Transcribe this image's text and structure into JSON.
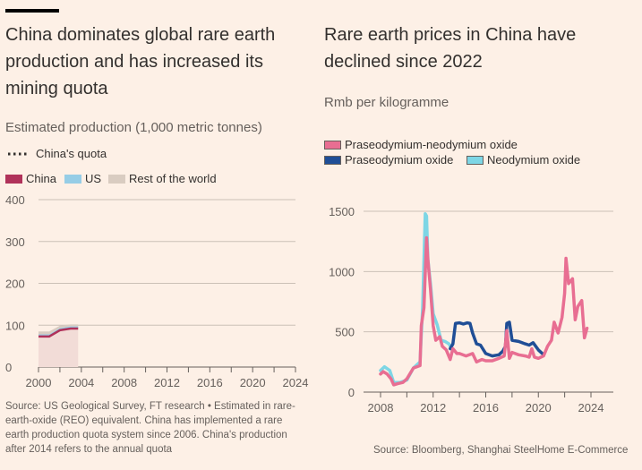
{
  "left": {
    "title_lines": [
      "China dominates global rare earth",
      "production and has increased its",
      "mining quota"
    ],
    "subtitle": "Estimated production (1,000 metric tonnes)",
    "legend": {
      "quota": "China's quota",
      "china": "China",
      "us": "US",
      "rest": "Rest of the world"
    },
    "source_lines": [
      "Source: US Geological Survey, FT research • Estimated in rare-",
      "earth-oxide (REO) equivalent. China has implemented a rare",
      "earth production quota system since 2006. China's production",
      "after 2014 refers to the annual quota"
    ]
  },
  "right": {
    "title_lines": [
      "Rare earth prices in China have",
      "declined since 2022"
    ],
    "subtitle": "Rmb per kilogramme",
    "legend": {
      "prnd": "Praseodymium-neodymium oxide",
      "pr": "Praseodymium oxide",
      "nd": "Neodymium oxide"
    },
    "source": "Source: Bloomberg, Shanghai SteelHome E-Commerce"
  },
  "colors": {
    "background": "#fdf0e6",
    "china": "#b0325a",
    "us": "#96cde6",
    "rest": "#d9ccc1",
    "china_fill": "#f2dcd7",
    "prnd": "#e86e92",
    "pr": "#1f4e96",
    "nd": "#7dd6e5",
    "grid": "#ccc1b7"
  },
  "chart_data": [
    {
      "type": "area",
      "title": "China dominates global rare earth production and has increased its mining quota",
      "ylabel": "Estimated production (1,000 metric tonnes)",
      "xlim": [
        2000,
        2024
      ],
      "ylim": [
        0,
        400
      ],
      "yticks": [
        0,
        100,
        200,
        300,
        400
      ],
      "xticks": [
        2000,
        2004,
        2008,
        2012,
        2016,
        2020,
        2024
      ],
      "grid": true,
      "legend_position": "top-left",
      "x": [
        2000,
        2001,
        2002,
        2003,
        2003.7
      ],
      "series": [
        {
          "name": "China",
          "values": [
            73,
            73,
            88,
            92,
            92
          ]
        },
        {
          "name": "US",
          "values": [
            5,
            5,
            5,
            5,
            5
          ]
        },
        {
          "name": "Rest of the world",
          "values": [
            7,
            7,
            6,
            5,
            5
          ]
        },
        {
          "name": "China's quota",
          "values": []
        }
      ]
    },
    {
      "type": "line",
      "title": "Rare earth prices in China have declined since 2022",
      "ylabel": "Rmb per kilogramme",
      "xlim": [
        2007.2,
        2025.8
      ],
      "ylim": [
        0,
        1500
      ],
      "yticks": [
        0,
        500,
        1000,
        1500
      ],
      "xticks": [
        2008,
        2012,
        2016,
        2020,
        2024
      ],
      "grid": true,
      "legend_position": "top-left",
      "series": [
        {
          "name": "Neodymium oxide",
          "x": [
            2008,
            2008.3,
            2008.7,
            2009,
            2009.5,
            2010,
            2010.5,
            2011,
            2011.2,
            2011.4,
            2011.5,
            2011.6,
            2011.8,
            2012,
            2012.3,
            2012.6,
            2012.9,
            2013.2,
            2013.4
          ],
          "values": [
            180,
            210,
            180,
            80,
            80,
            100,
            200,
            250,
            700,
            1480,
            1460,
            1100,
            900,
            650,
            560,
            430,
            420,
            400,
            360
          ]
        },
        {
          "name": "Praseodymium oxide",
          "x": [
            2013.3,
            2013.5,
            2013.7,
            2014,
            2014.3,
            2014.6,
            2014.8,
            2015,
            2015.3,
            2015.6,
            2016,
            2016.5,
            2017,
            2017.3,
            2017.5,
            2017.6,
            2017.8,
            2018,
            2018.5,
            2019,
            2019.3,
            2019.6,
            2020,
            2020.3
          ],
          "values": [
            360,
            400,
            570,
            575,
            565,
            575,
            570,
            490,
            400,
            390,
            320,
            300,
            310,
            340,
            380,
            570,
            580,
            430,
            420,
            400,
            390,
            410,
            350,
            320
          ]
        },
        {
          "name": "Praseodymium-neodymium oxide",
          "x": [
            2008,
            2008.2,
            2008.5,
            2008.8,
            2009,
            2009.3,
            2009.7,
            2010,
            2010.5,
            2011,
            2011.1,
            2011.3,
            2011.5,
            2011.6,
            2011.8,
            2012,
            2012.2,
            2012.5,
            2012.7,
            2013,
            2013.3,
            2013.5,
            2013.8,
            2014,
            2014.5,
            2015,
            2015.3,
            2015.7,
            2016,
            2016.5,
            2017,
            2017.4,
            2017.6,
            2017.8,
            2018,
            2018.5,
            2019,
            2019.3,
            2019.5,
            2019.7,
            2020,
            2020.4,
            2020.7,
            2021,
            2021.2,
            2021.5,
            2021.8,
            2022,
            2022.1,
            2022.3,
            2022.6,
            2022.8,
            2023,
            2023.3,
            2023.5,
            2023.7
          ],
          "values": [
            150,
            170,
            150,
            110,
            60,
            70,
            80,
            110,
            200,
            220,
            550,
            700,
            1280,
            1100,
            850,
            550,
            430,
            460,
            380,
            350,
            270,
            360,
            320,
            320,
            300,
            320,
            250,
            270,
            260,
            260,
            280,
            300,
            510,
            280,
            330,
            310,
            300,
            290,
            360,
            290,
            280,
            300,
            380,
            430,
            580,
            490,
            620,
            820,
            1110,
            900,
            940,
            600,
            710,
            760,
            450,
            530
          ]
        }
      ]
    }
  ]
}
